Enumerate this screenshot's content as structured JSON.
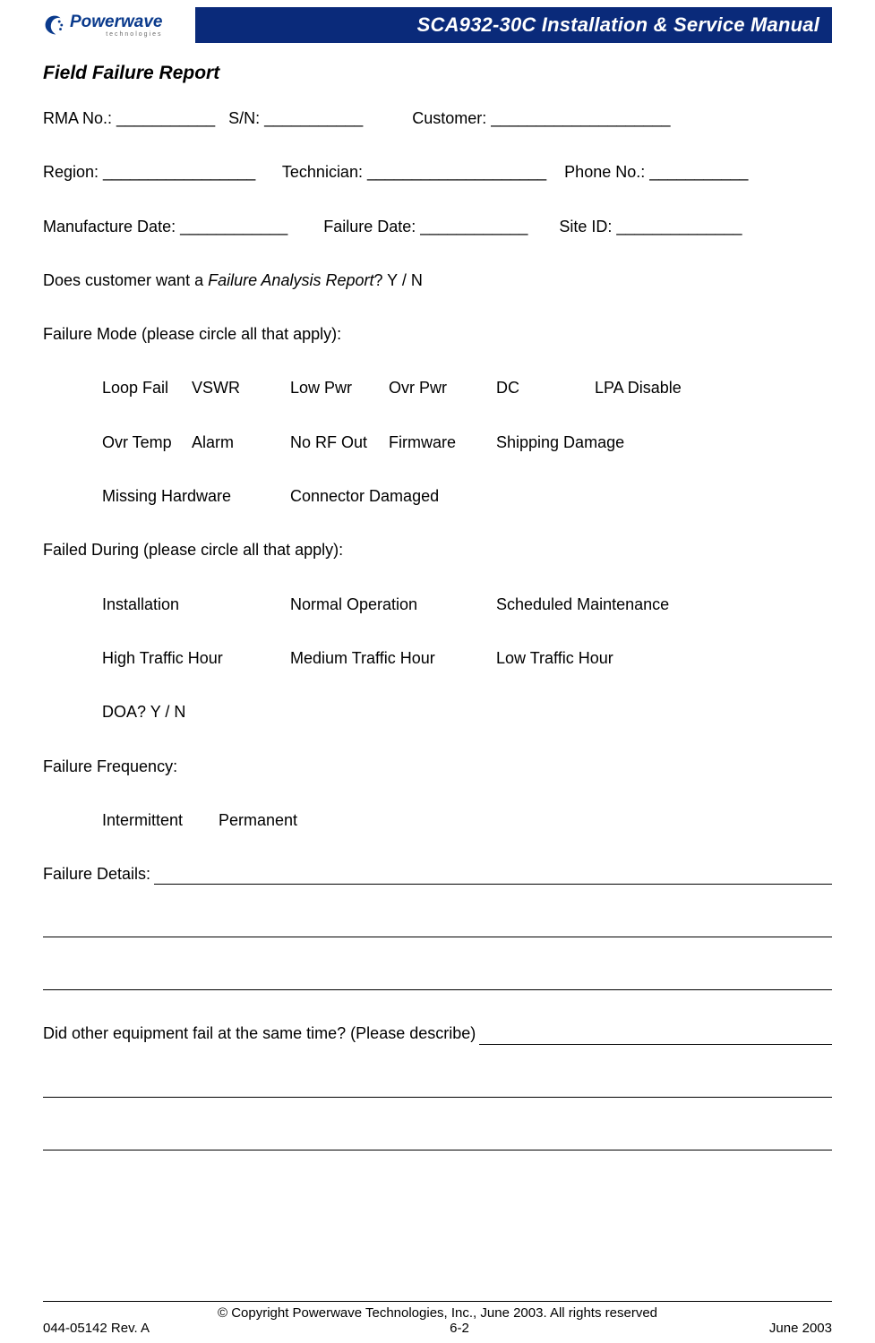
{
  "header": {
    "logo_main": "Powerwave",
    "logo_sub": "technologies",
    "title": "SCA932-30C Installation & Service Manual"
  },
  "section_title": "Field Failure Report",
  "fields": {
    "row1": "RMA No.: ___________   S/N: ___________           Customer: ____________________",
    "row2": "Region: _________________      Technician: ____________________    Phone No.: ___________",
    "row3": "Manufacture Date: ____________        Failure Date: ____________       Site ID: ______________"
  },
  "far_question": {
    "prefix": "Does customer want a ",
    "italic": "Failure Analysis Report",
    "suffix": "? Y / N"
  },
  "failure_mode": {
    "heading": "Failure Mode (please circle all that apply):",
    "row1": [
      "Loop Fail",
      "VSWR",
      "Low Pwr",
      "Ovr Pwr",
      "DC",
      "LPA Disable"
    ],
    "row1_widths": [
      100,
      110,
      110,
      120,
      110,
      140
    ],
    "row2": [
      "Ovr Temp",
      "Alarm",
      "No RF Out",
      "Firmware",
      "Shipping Damage"
    ],
    "row2_widths": [
      100,
      110,
      110,
      120,
      200
    ],
    "row3": [
      "Missing Hardware",
      "Connector Damaged"
    ],
    "row3_widths": [
      210,
      220
    ]
  },
  "failed_during": {
    "heading": "Failed During (please circle all that apply):",
    "row1": [
      "Installation",
      "Normal Operation",
      "Scheduled Maintenance"
    ],
    "row1_widths": [
      210,
      230,
      260
    ],
    "row2": [
      "High Traffic Hour",
      "Medium Traffic Hour",
      "Low Traffic Hour"
    ],
    "row2_widths": [
      210,
      230,
      200
    ],
    "row3": [
      "DOA?  Y / N"
    ],
    "row3_widths": [
      200
    ]
  },
  "failure_freq": {
    "heading": "Failure Frequency:",
    "row1": [
      "Intermittent",
      "Permanent"
    ],
    "row1_widths": [
      130,
      120
    ]
  },
  "failure_details_label": "Failure Details:",
  "other_equipment_label": "Did other equipment fail at the same time? (Please describe)",
  "footer": {
    "copyright": "© Copyright Powerwave Technologies, Inc., June 2003. All rights reserved",
    "doc_no": "044-05142 Rev. A",
    "page_no": "6-2",
    "date": "June 2003"
  }
}
